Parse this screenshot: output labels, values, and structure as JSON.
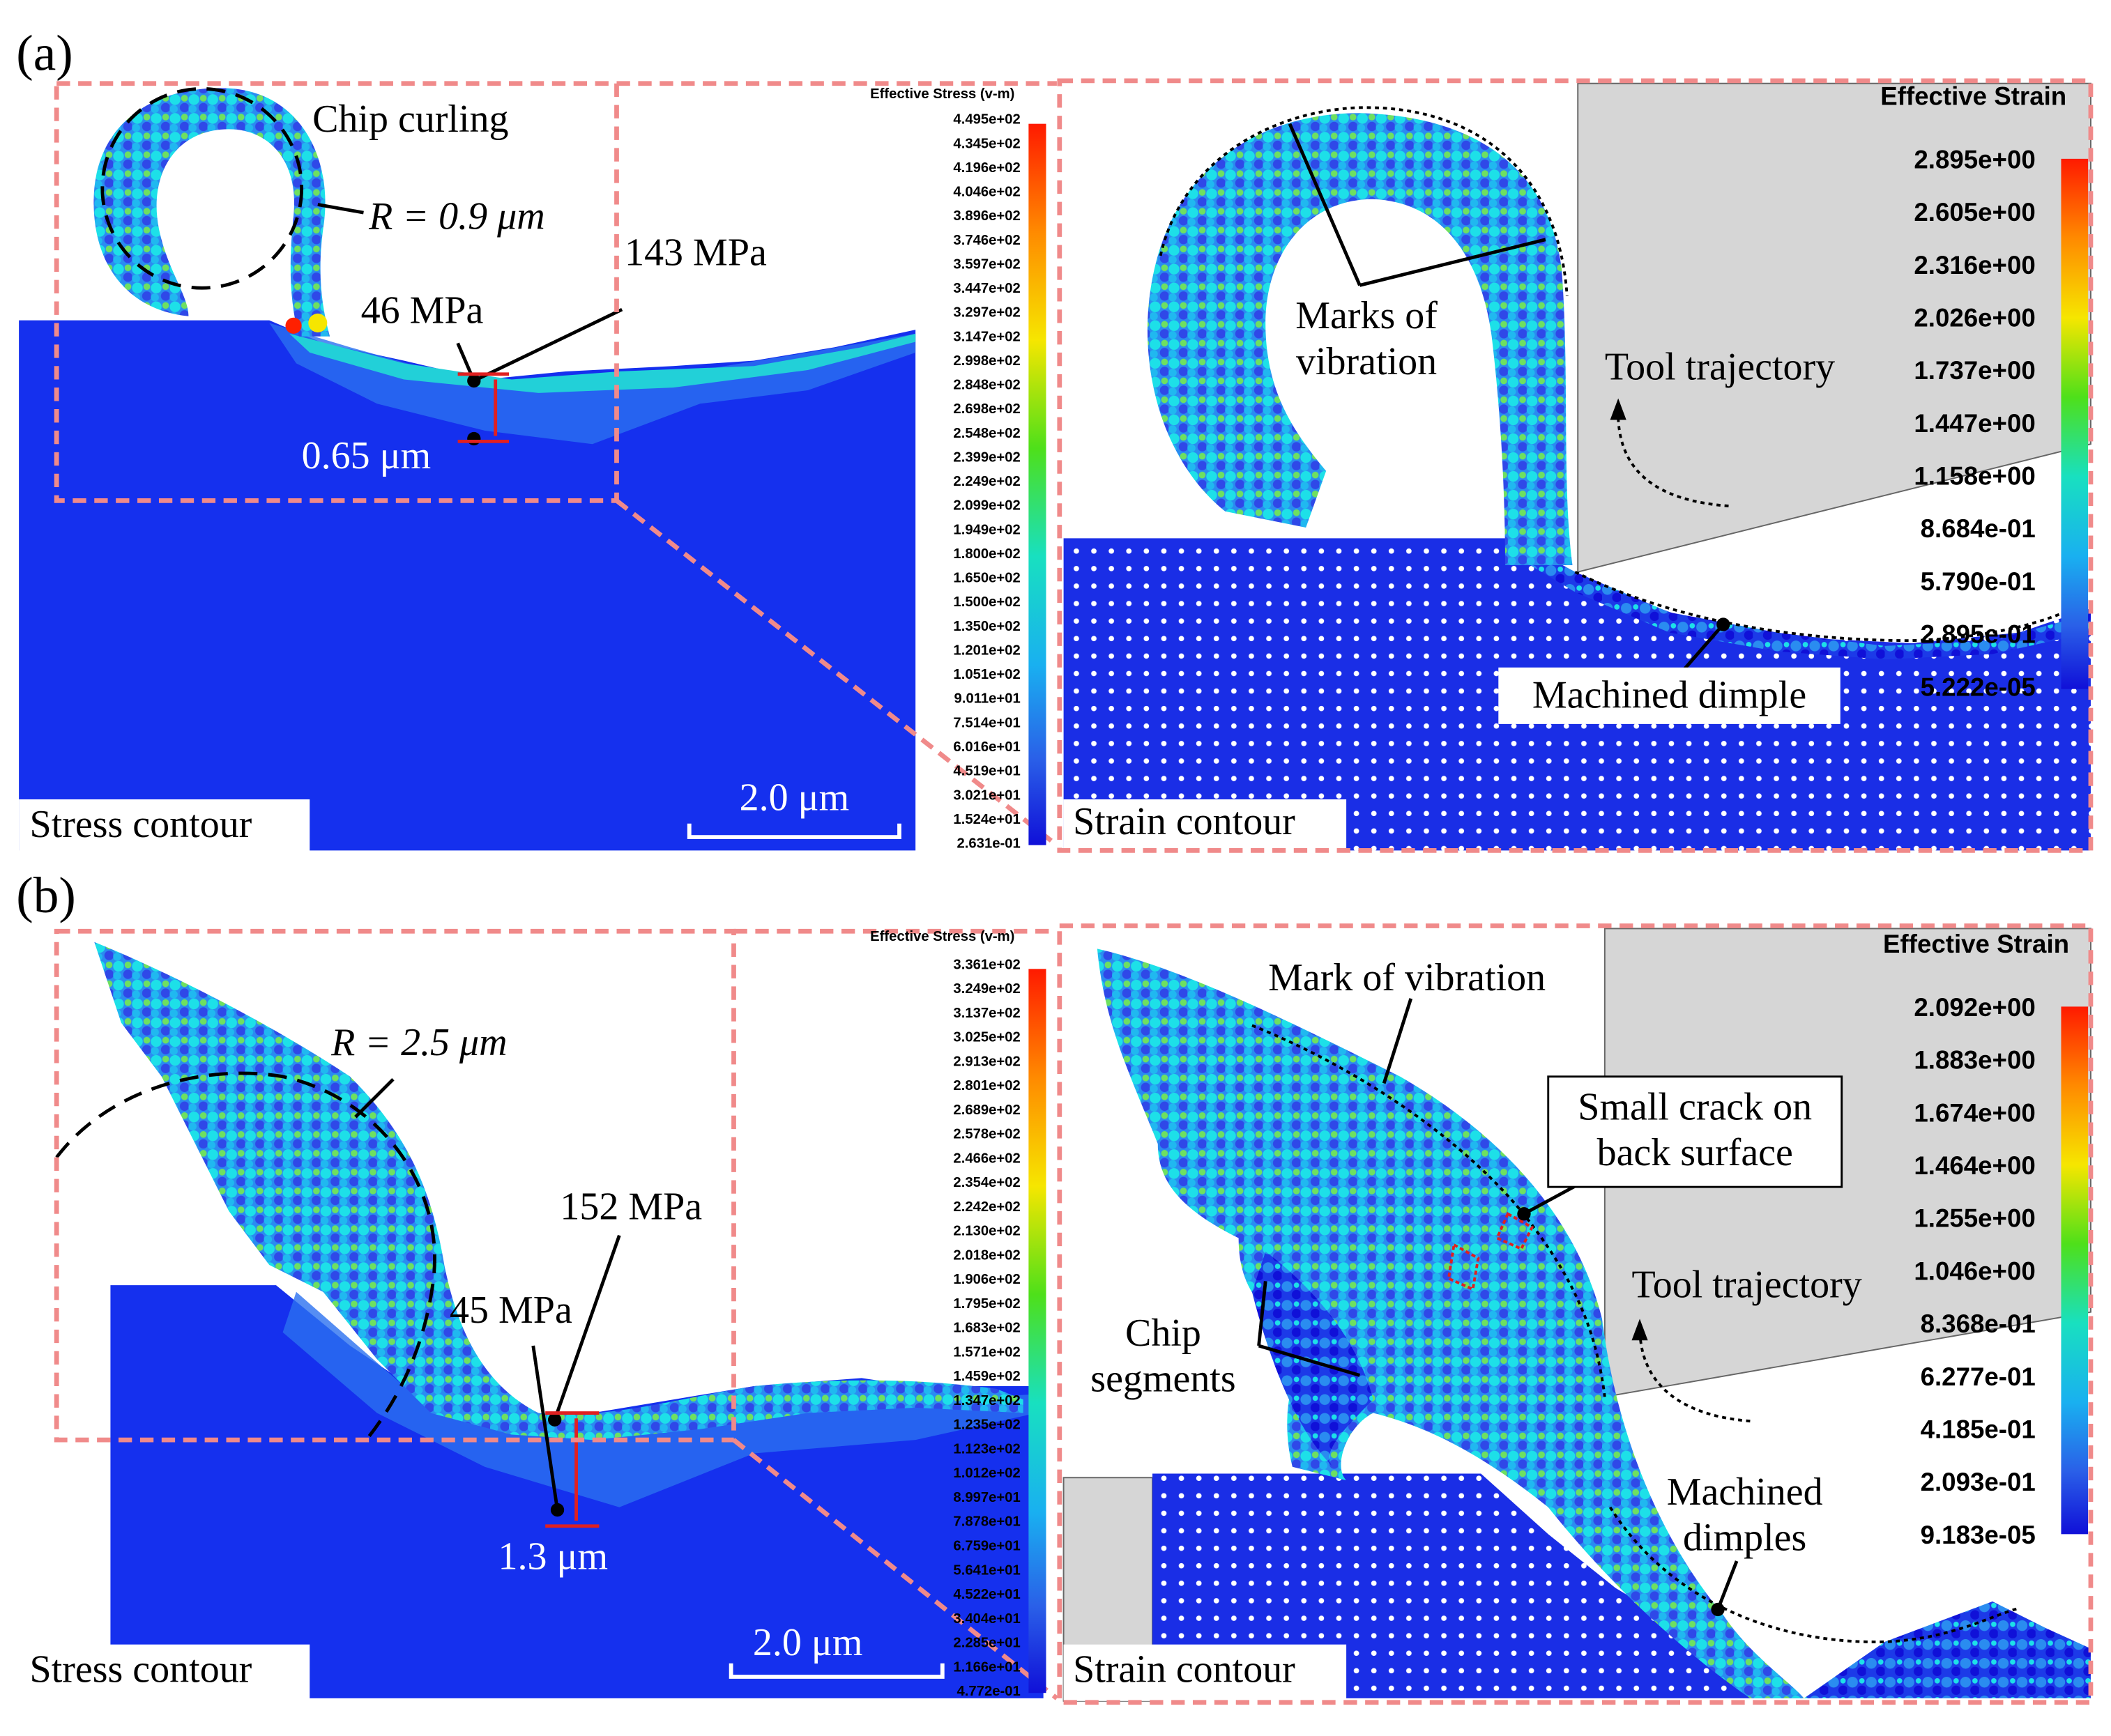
{
  "panels": [
    {
      "label": "(a)",
      "stress": {
        "title": "Effective Stress (v-m)",
        "scale": [
          "4.495e+02",
          "4.345e+02",
          "4.196e+02",
          "4.046e+02",
          "3.896e+02",
          "3.746e+02",
          "3.597e+02",
          "3.447e+02",
          "3.297e+02",
          "3.147e+02",
          "2.998e+02",
          "2.848e+02",
          "2.698e+02",
          "2.548e+02",
          "2.399e+02",
          "2.249e+02",
          "2.099e+02",
          "1.949e+02",
          "1.800e+02",
          "1.650e+02",
          "1.500e+02",
          "1.350e+02",
          "1.201e+02",
          "1.051e+02",
          "9.011e+01",
          "7.514e+01",
          "6.016e+01",
          "4.519e+01",
          "3.021e+01",
          "1.524e+01",
          "2.631e-01"
        ],
        "annotations": [
          "Chip curling",
          "R = 0.9 μm",
          "143 MPa",
          "46 MPa",
          "0.65 μm"
        ],
        "caption": "Stress contour",
        "scale_bar": "2.0 μm"
      },
      "strain": {
        "title": "Effective Strain",
        "scale": [
          "2.895e+00",
          "2.605e+00",
          "2.316e+00",
          "2.026e+00",
          "1.737e+00",
          "1.447e+00",
          "1.158e+00",
          "8.684e-01",
          "5.790e-01",
          "2.895e-01",
          "5.222e-05"
        ],
        "annotations": [
          [
            "Marks of",
            "vibration"
          ],
          [
            "Tool trajectory"
          ],
          [
            "Machined dimple"
          ]
        ],
        "caption": "Strain contour"
      }
    },
    {
      "label": "(b)",
      "stress": {
        "title": "Effective Stress (v-m)",
        "scale": [
          "3.361e+02",
          "3.249e+02",
          "3.137e+02",
          "3.025e+02",
          "2.913e+02",
          "2.801e+02",
          "2.689e+02",
          "2.578e+02",
          "2.466e+02",
          "2.354e+02",
          "2.242e+02",
          "2.130e+02",
          "2.018e+02",
          "1.906e+02",
          "1.795e+02",
          "1.683e+02",
          "1.571e+02",
          "1.459e+02",
          "1.347e+02",
          "1.235e+02",
          "1.123e+02",
          "1.012e+02",
          "8.997e+01",
          "7.878e+01",
          "6.759e+01",
          "5.641e+01",
          "4.522e+01",
          "3.404e+01",
          "2.285e+01",
          "1.166e+01",
          "4.772e-01"
        ],
        "annotations": [
          "R = 2.5 μm",
          "152 MPa",
          "45 MPa",
          "1.3 μm"
        ],
        "caption": "Stress contour",
        "scale_bar": "2.0 μm"
      },
      "strain": {
        "title": "Effective Strain",
        "scale": [
          "2.092e+00",
          "1.883e+00",
          "1.674e+00",
          "1.464e+00",
          "1.255e+00",
          "1.046e+00",
          "8.368e-01",
          "6.277e-01",
          "4.185e-01",
          "2.093e-01",
          "9.183e-05"
        ],
        "annotations": [
          [
            "Mark of vibration"
          ],
          [
            "Small crack on",
            "back surface"
          ],
          [
            "Tool trajectory"
          ],
          [
            "Chip",
            "segments"
          ],
          [
            "Machined",
            "dimples"
          ]
        ],
        "caption": "Strain contour"
      }
    }
  ]
}
